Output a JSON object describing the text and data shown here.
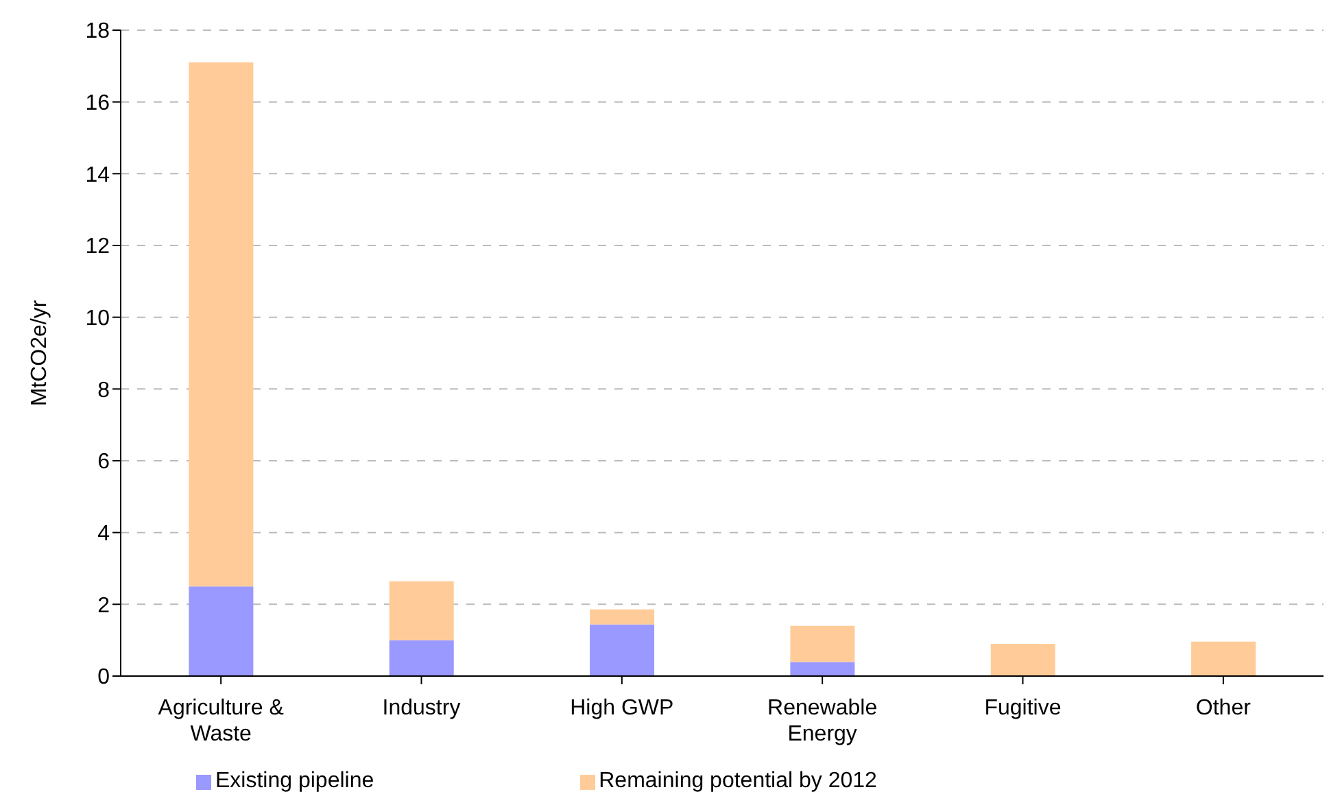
{
  "chart_data": {
    "type": "bar",
    "stacked": true,
    "ylabel": "MtCO2e/yr",
    "categories": [
      "Agriculture & Waste",
      "Industry",
      "High GWP",
      "Renewable Energy",
      "Fugitive",
      "Other"
    ],
    "series": [
      {
        "name": "Existing pipeline",
        "color": "#9999ff",
        "values": [
          2.5,
          1.0,
          1.44,
          0.39,
          0,
          0
        ]
      },
      {
        "name": "Remaining potential by 2012",
        "color": "#ffcc99",
        "values": [
          14.6,
          1.64,
          0.42,
          1.01,
          0.9,
          0.96
        ]
      }
    ],
    "ylim": [
      0,
      18
    ],
    "yticks": [
      0,
      2,
      4,
      6,
      8,
      10,
      12,
      14,
      16,
      18
    ],
    "grid": "y",
    "legend": "bottom"
  }
}
